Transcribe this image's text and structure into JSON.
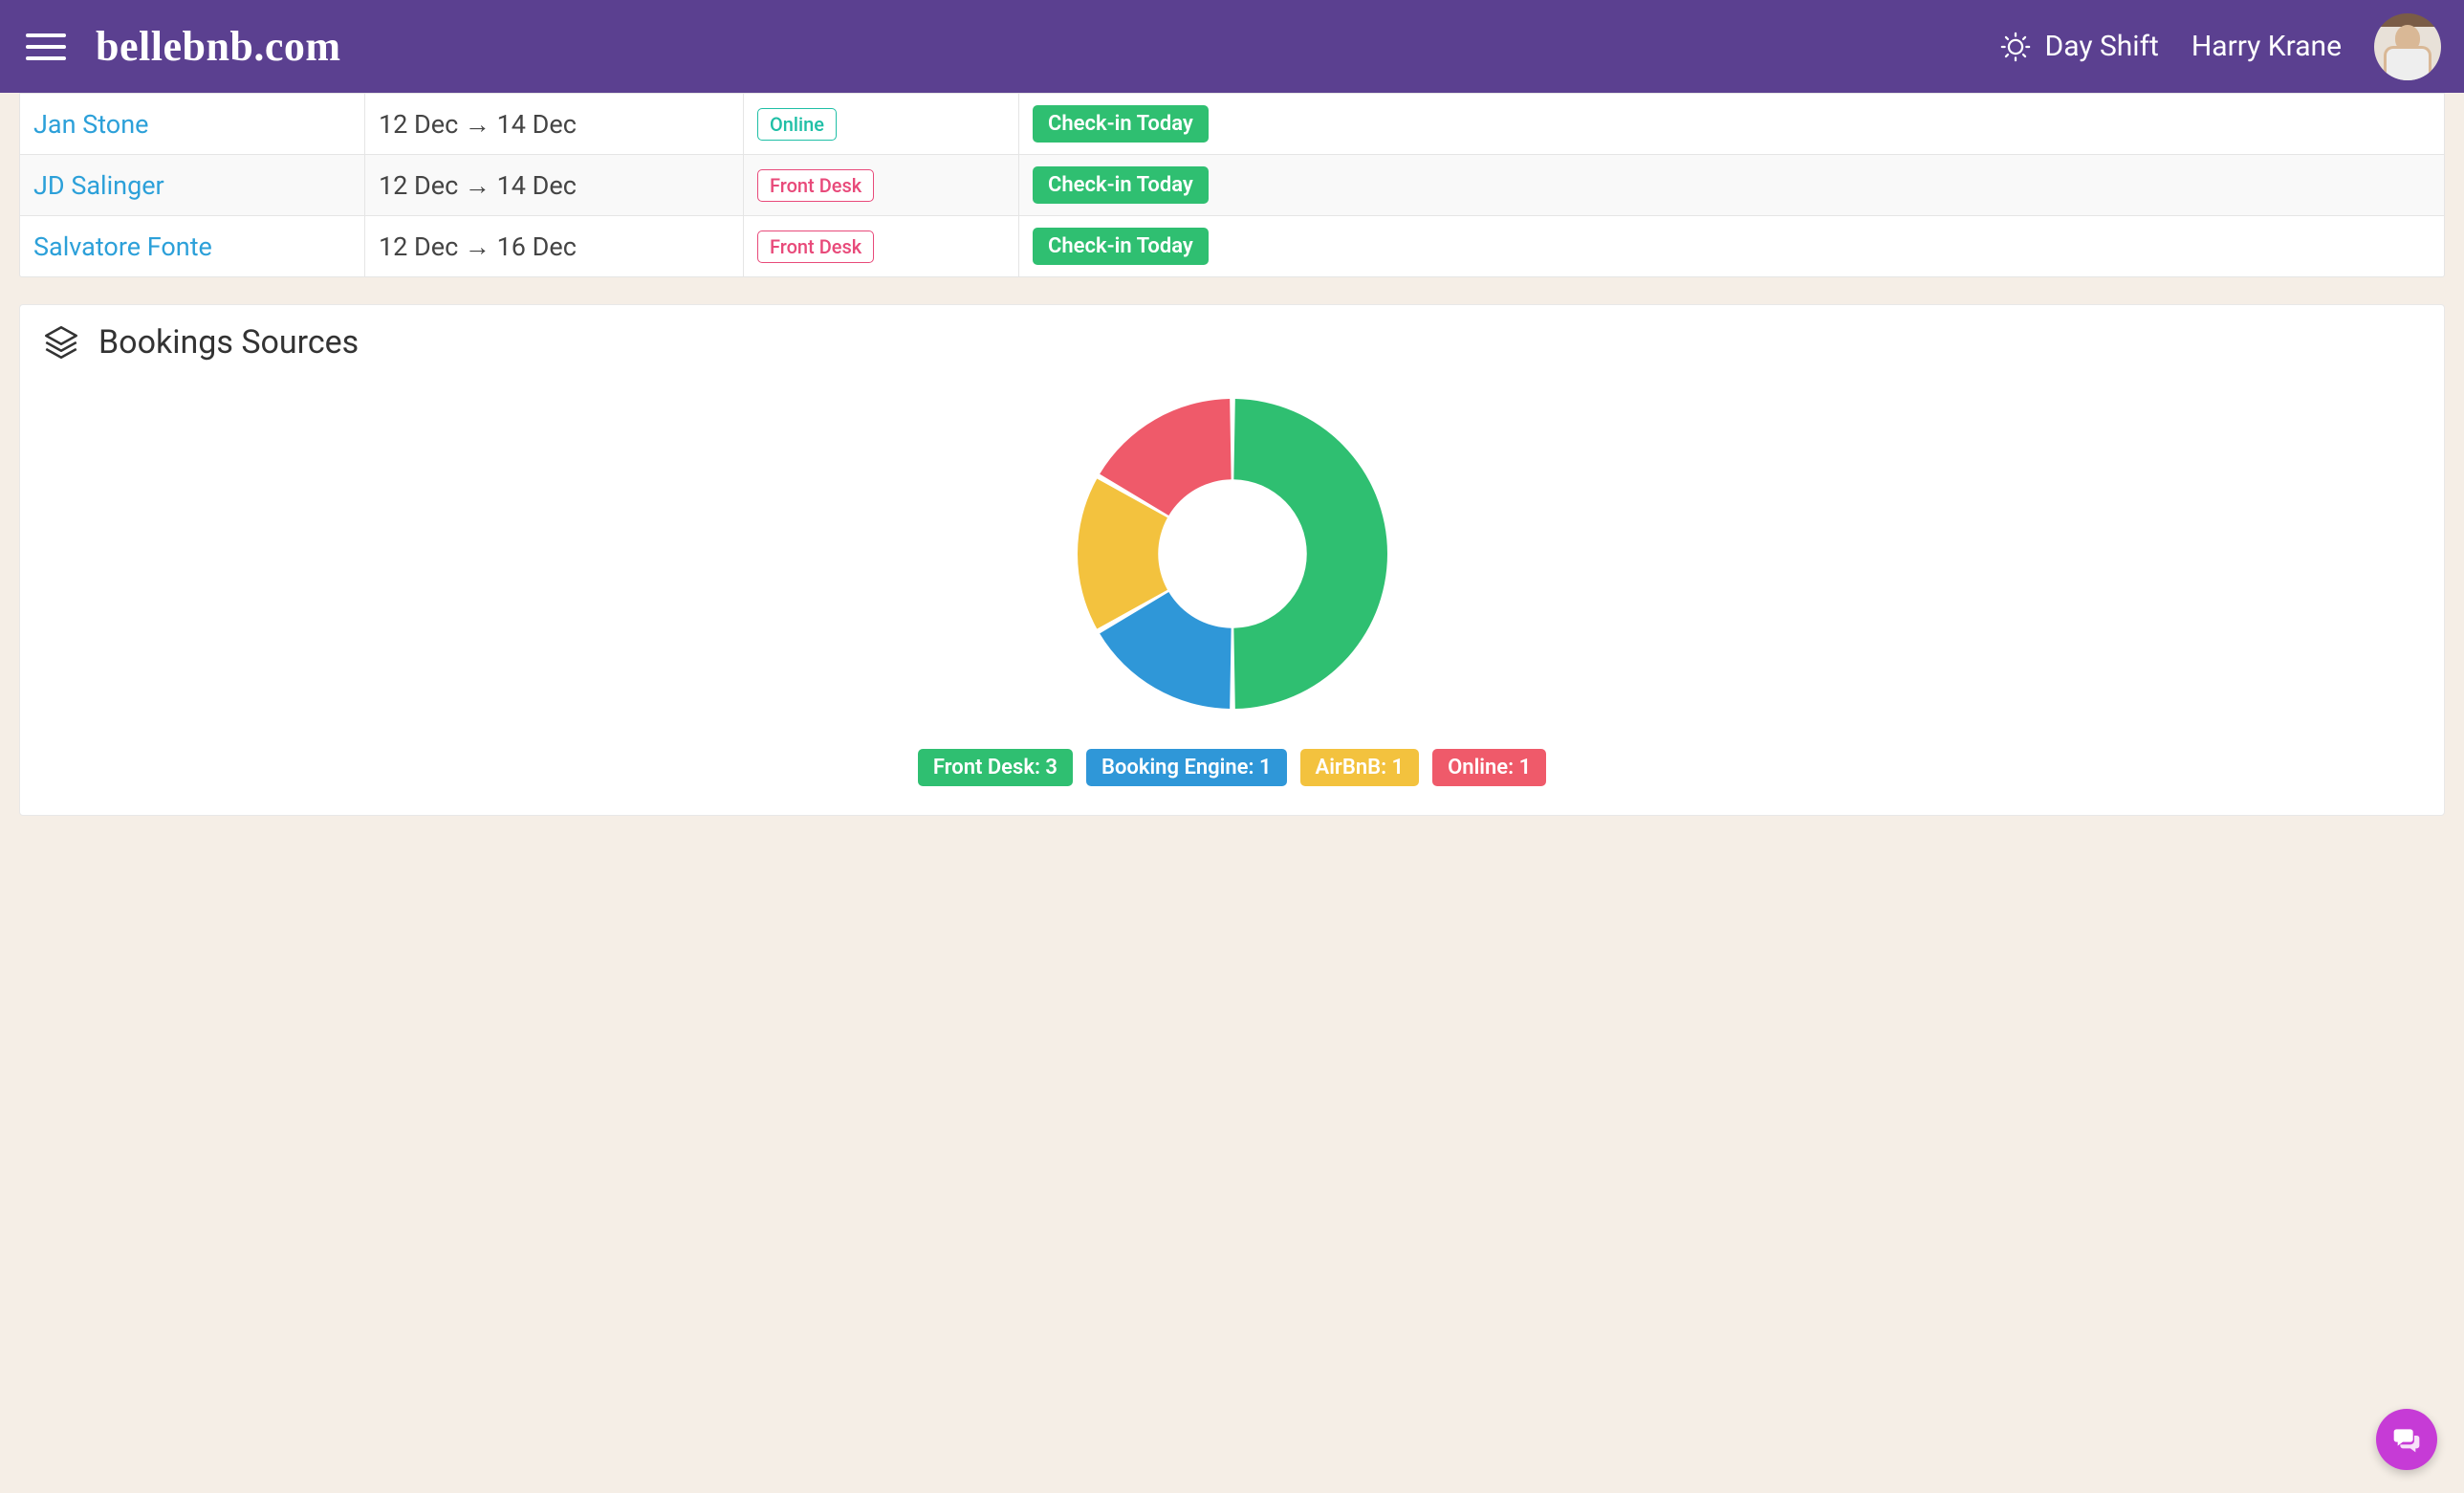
{
  "colors": {
    "header_bg": "#5b4090",
    "page_bg": "#f5eee6",
    "link": "#2ca0d9",
    "green": "#2fbf71",
    "teal": "#1fbfa6",
    "pink": "#e84a7a",
    "blue": "#2f97d8",
    "yellow": "#f3c23e",
    "red": "#ef5a6a",
    "fab": "#c63bd6"
  },
  "header": {
    "logo": "bellebnb.com",
    "shift_label": "Day Shift",
    "username": "Harry Krane"
  },
  "bookings_table": {
    "rows": [
      {
        "guest": "Jan Stone",
        "dates": "12 Dec → 14 Dec",
        "source": "Online",
        "source_color": "#1fbfa6",
        "action": "Check-in Today"
      },
      {
        "guest": "JD Salinger",
        "dates": "12 Dec → 14 Dec",
        "source": "Front Desk",
        "source_color": "#e84a7a",
        "action": "Check-in Today"
      },
      {
        "guest": "Salvatore Fonte",
        "dates": "12 Dec → 16 Dec",
        "source": "Front Desk",
        "source_color": "#e84a7a",
        "action": "Check-in Today"
      }
    ],
    "action_bg": "#2fbf71"
  },
  "sources_card": {
    "title": "Bookings Sources",
    "donut": {
      "type": "donut",
      "inner_radius_ratio": 0.48,
      "gap_deg": 2,
      "background": "#ffffff",
      "slices": [
        {
          "label": "Front Desk",
          "value": 3,
          "color": "#2fbf71"
        },
        {
          "label": "Booking Engine",
          "value": 1,
          "color": "#2f97d8"
        },
        {
          "label": "AirBnB",
          "value": 1,
          "color": "#f3c23e"
        },
        {
          "label": "Online",
          "value": 1,
          "color": "#ef5a6a"
        }
      ]
    },
    "legend": [
      {
        "text": "Front Desk: 3",
        "color": "#2fbf71"
      },
      {
        "text": "Booking Engine: 1",
        "color": "#2f97d8"
      },
      {
        "text": "AirBnB: 1",
        "color": "#f3c23e"
      },
      {
        "text": "Online: 1",
        "color": "#ef5a6a"
      }
    ]
  }
}
